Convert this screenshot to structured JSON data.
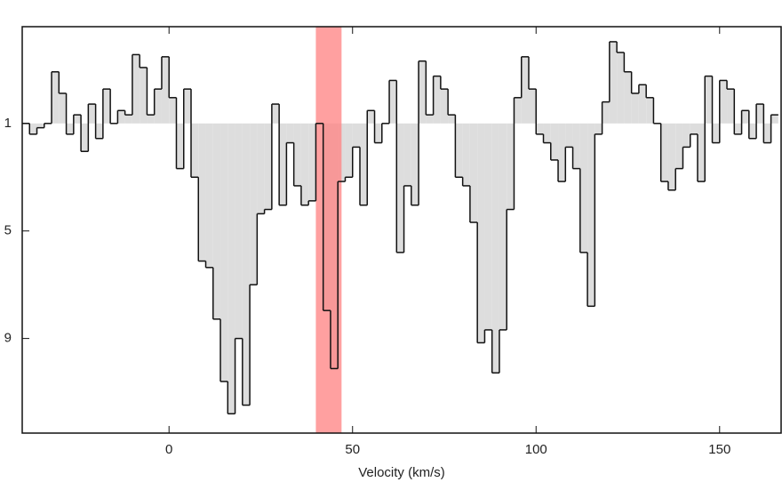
{
  "chart_data": {
    "type": "step",
    "x_label": "Velocity (km/s)",
    "x": [
      -40,
      -38,
      -36,
      -34,
      -32,
      -30,
      -28,
      -26,
      -24,
      -22,
      -20,
      -18,
      -16,
      -14,
      -12,
      -10,
      -8,
      -6,
      -4,
      -2,
      0,
      2,
      4,
      6,
      8,
      10,
      12,
      14,
      16,
      18,
      20,
      22,
      24,
      26,
      28,
      30,
      32,
      34,
      36,
      38,
      40,
      42,
      44,
      46,
      48,
      50,
      52,
      54,
      56,
      58,
      60,
      62,
      64,
      66,
      68,
      70,
      72,
      74,
      76,
      78,
      80,
      82,
      84,
      86,
      88,
      90,
      92,
      94,
      96,
      98,
      100,
      102,
      104,
      106,
      108,
      110,
      112,
      114,
      116,
      118,
      120,
      122,
      124,
      126,
      128,
      130,
      132,
      134,
      136,
      138,
      140,
      142,
      144,
      146,
      148,
      150,
      152,
      154,
      156,
      158,
      160,
      162,
      164
    ],
    "values": [
      1.0,
      0.995,
      0.998,
      1.0,
      1.024,
      1.014,
      0.995,
      1.004,
      0.987,
      1.009,
      0.993,
      1.016,
      1.0,
      1.006,
      1.004,
      1.032,
      1.026,
      1.004,
      1.016,
      1.031,
      1.012,
      0.979,
      1.016,
      0.975,
      0.936,
      0.933,
      0.909,
      0.88,
      0.865,
      0.9,
      0.869,
      0.925,
      0.958,
      0.96,
      1.009,
      0.962,
      0.991,
      0.971,
      0.962,
      0.964,
      1.0,
      0.913,
      0.886,
      0.973,
      0.975,
      0.989,
      0.962,
      1.006,
      0.991,
      1.0,
      1.02,
      0.94,
      0.971,
      0.962,
      1.029,
      1.004,
      1.022,
      1.016,
      1.004,
      0.975,
      0.971,
      0.954,
      0.898,
      0.904,
      0.884,
      0.904,
      0.96,
      1.012,
      1.031,
      1.016,
      0.995,
      0.991,
      0.983,
      0.973,
      0.989,
      0.979,
      0.94,
      0.915,
      0.995,
      1.01,
      1.038,
      1.033,
      1.024,
      1.014,
      1.018,
      1.012,
      1.0,
      0.973,
      0.969,
      0.979,
      0.989,
      0.995,
      0.973,
      1.022,
      0.991,
      1.02,
      1.016,
      0.995,
      1.006,
      0.993,
      1.009,
      0.991,
      1.004
    ],
    "step_width": 2,
    "fill_to": 1,
    "line_color": "#111111",
    "fill_color": "#dddddd",
    "highlight": {
      "range": [
        40,
        47
      ],
      "color": "#ff8080"
    },
    "xlim": [
      -40,
      167
    ],
    "xticks": [
      0,
      50,
      100,
      150
    ],
    "ylim": [
      0.856,
      1.045
    ],
    "yticks": [
      1,
      {
        "value": 0.95,
        "label": "5"
      },
      {
        "value": 0.9,
        "label": "9"
      }
    ]
  }
}
